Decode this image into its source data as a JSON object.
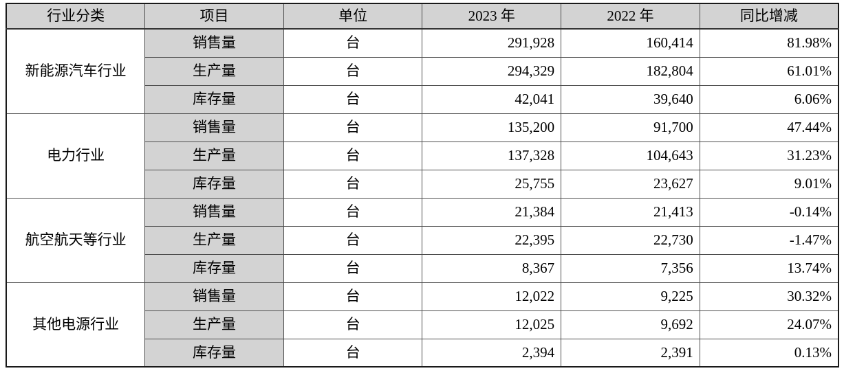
{
  "table": {
    "columns": [
      "行业分类",
      "项目",
      "单位",
      "2023 年",
      "2022 年",
      "同比增减"
    ],
    "groups": [
      {
        "industry": "新能源汽车行业",
        "rows": [
          {
            "item": "销售量",
            "unit": "台",
            "y2023": "291,928",
            "y2022": "160,414",
            "yoy": "81.98%"
          },
          {
            "item": "生产量",
            "unit": "台",
            "y2023": "294,329",
            "y2022": "182,804",
            "yoy": "61.01%"
          },
          {
            "item": "库存量",
            "unit": "台",
            "y2023": "42,041",
            "y2022": "39,640",
            "yoy": "6.06%"
          }
        ]
      },
      {
        "industry": "电力行业",
        "rows": [
          {
            "item": "销售量",
            "unit": "台",
            "y2023": "135,200",
            "y2022": "91,700",
            "yoy": "47.44%"
          },
          {
            "item": "生产量",
            "unit": "台",
            "y2023": "137,328",
            "y2022": "104,643",
            "yoy": "31.23%"
          },
          {
            "item": "库存量",
            "unit": "台",
            "y2023": "25,755",
            "y2022": "23,627",
            "yoy": "9.01%"
          }
        ]
      },
      {
        "industry": "航空航天等行业",
        "rows": [
          {
            "item": "销售量",
            "unit": "台",
            "y2023": "21,384",
            "y2022": "21,413",
            "yoy": "-0.14%"
          },
          {
            "item": "生产量",
            "unit": "台",
            "y2023": "22,395",
            "y2022": "22,730",
            "yoy": "-1.47%"
          },
          {
            "item": "库存量",
            "unit": "台",
            "y2023": "8,367",
            "y2022": "7,356",
            "yoy": "13.74%"
          }
        ]
      },
      {
        "industry": "其他电源行业",
        "rows": [
          {
            "item": "销售量",
            "unit": "台",
            "y2023": "12,022",
            "y2022": "9,225",
            "yoy": "30.32%"
          },
          {
            "item": "生产量",
            "unit": "台",
            "y2023": "12,025",
            "y2022": "9,692",
            "yoy": "24.07%"
          },
          {
            "item": "库存量",
            "unit": "台",
            "y2023": "2,394",
            "y2022": "2,391",
            "yoy": "0.13%"
          }
        ]
      }
    ],
    "colors": {
      "header_bg": "#d3d3d3",
      "item_column_bg": "#d3d3d3",
      "inner_border": "#4d4d4d",
      "outer_border": "#1a1a1a",
      "text": "#000000",
      "page_bg": "#ffffff"
    }
  },
  "chart_data": {
    "type": "table",
    "title": "",
    "columns": [
      "行业分类",
      "项目",
      "单位",
      "2023 年",
      "2022 年",
      "同比增减"
    ],
    "rows": [
      [
        "新能源汽车行业",
        "销售量",
        "台",
        291928,
        160414,
        "81.98%"
      ],
      [
        "新能源汽车行业",
        "生产量",
        "台",
        294329,
        182804,
        "61.01%"
      ],
      [
        "新能源汽车行业",
        "库存量",
        "台",
        42041,
        39640,
        "6.06%"
      ],
      [
        "电力行业",
        "销售量",
        "台",
        135200,
        91700,
        "47.44%"
      ],
      [
        "电力行业",
        "生产量",
        "台",
        137328,
        104643,
        "31.23%"
      ],
      [
        "电力行业",
        "库存量",
        "台",
        25755,
        23627,
        "9.01%"
      ],
      [
        "航空航天等行业",
        "销售量",
        "台",
        21384,
        21413,
        "-0.14%"
      ],
      [
        "航空航天等行业",
        "生产量",
        "台",
        22395,
        22730,
        "-1.47%"
      ],
      [
        "航空航天等行业",
        "库存量",
        "台",
        8367,
        7356,
        "13.74%"
      ],
      [
        "其他电源行业",
        "销售量",
        "台",
        12022,
        9225,
        "30.32%"
      ],
      [
        "其他电源行业",
        "生产量",
        "台",
        12025,
        9692,
        "24.07%"
      ],
      [
        "其他电源行业",
        "库存量",
        "台",
        2394,
        2391,
        "0.13%"
      ]
    ]
  }
}
